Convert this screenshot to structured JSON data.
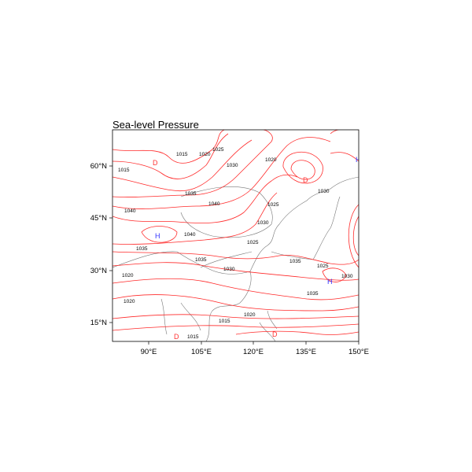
{
  "title": "Sea-level Pressure",
  "map": {
    "projection": "cylindrical equidistant",
    "lon_range": [
      80,
      150
    ],
    "lat_range": [
      10,
      70
    ],
    "contour_color": "#ff0000",
    "high_color": "#3333ff",
    "low_color": "#ff3333",
    "x_ticks": [
      "90°E",
      "105°E",
      "120°E",
      "135°E",
      "150°E"
    ],
    "y_ticks": [
      "60°N",
      "45°N",
      "30°N",
      "15°N"
    ],
    "contour_labels": [
      "1015",
      "1015",
      "1020",
      "1025",
      "1030",
      "1020",
      "1035",
      "1040",
      "1040",
      "1040",
      "1035",
      "1035",
      "1030",
      "1025",
      "1030",
      "1025",
      "1020",
      "1030",
      "1025",
      "1030",
      "1035",
      "1035",
      "1020",
      "1015",
      "1015",
      "1020"
    ],
    "highs": [
      "H",
      "H",
      "H"
    ],
    "lows": [
      "D",
      "D",
      "D",
      "D"
    ]
  }
}
